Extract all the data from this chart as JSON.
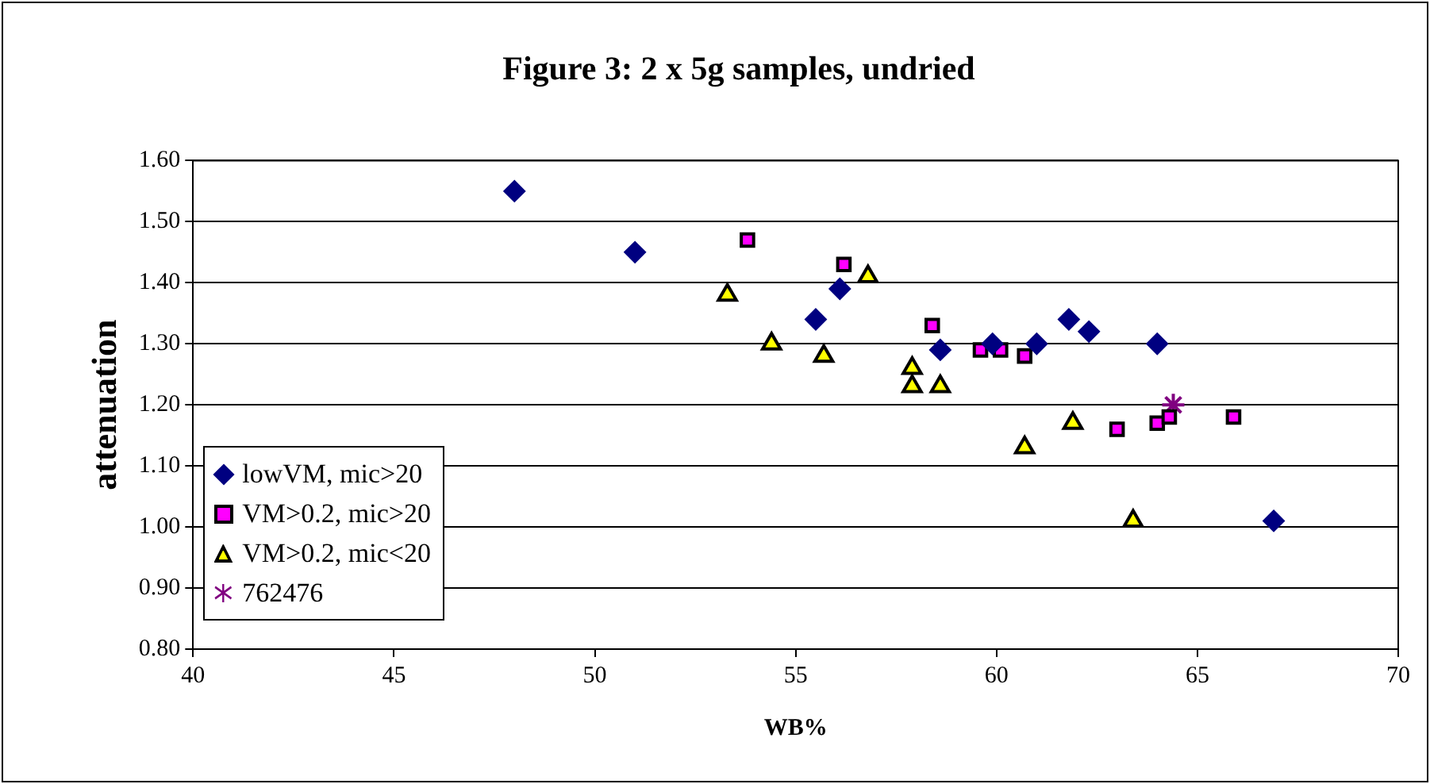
{
  "chart_data": {
    "type": "scatter",
    "title": "Figure 3: 2 x 5g samples, undried",
    "xlabel": "WB%",
    "ylabel": "attenuation",
    "series": [
      {
        "name": "lowVM, mic>20",
        "color": "#000080",
        "marker": "diamond",
        "x": [
          48.0,
          51.0,
          55.5,
          56.1,
          58.6,
          59.9,
          61.0,
          61.8,
          62.3,
          64.0,
          66.9
        ],
        "values": [
          1.55,
          1.45,
          1.34,
          1.39,
          1.29,
          1.3,
          1.3,
          1.34,
          1.32,
          1.3,
          1.01
        ]
      },
      {
        "name": "VM>0.2, mic>20",
        "color": "#ff00ff",
        "marker": "square",
        "x": [
          53.8,
          56.2,
          58.4,
          59.6,
          60.1,
          60.7,
          63.0,
          64.0,
          64.3,
          65.9
        ],
        "values": [
          1.47,
          1.43,
          1.33,
          1.29,
          1.29,
          1.28,
          1.16,
          1.17,
          1.18,
          1.18
        ]
      },
      {
        "name": "VM>0.2, mic<20",
        "color": "#ffff00",
        "marker": "triangle",
        "x": [
          53.3,
          54.4,
          55.7,
          56.8,
          57.9,
          57.9,
          58.6,
          60.7,
          61.9,
          63.4
        ],
        "values": [
          1.38,
          1.3,
          1.28,
          1.41,
          1.26,
          1.23,
          1.23,
          1.13,
          1.17,
          1.01
        ]
      },
      {
        "name": "762476",
        "color": "#800080",
        "marker": "cross",
        "x": [
          64.4
        ],
        "values": [
          1.2
        ]
      }
    ],
    "xlim": [
      40,
      70
    ],
    "xticks": [
      40,
      45,
      50,
      55,
      60,
      65,
      70
    ],
    "ylim": [
      0.8,
      1.6
    ],
    "yticks": [
      {
        "value": 0.8,
        "label": "0.80"
      },
      {
        "value": 0.9,
        "label": "0.90"
      },
      {
        "value": 1.0,
        "label": "1.00"
      },
      {
        "value": 1.1,
        "label": "1.10"
      },
      {
        "value": 1.2,
        "label": "1.20"
      },
      {
        "value": 1.3,
        "label": "1.30"
      },
      {
        "value": 1.4,
        "label": "1.40"
      },
      {
        "value": 1.5,
        "label": "1.50"
      },
      {
        "value": 1.6,
        "label": "1.60"
      }
    ],
    "grid": "y",
    "legend": "left"
  }
}
